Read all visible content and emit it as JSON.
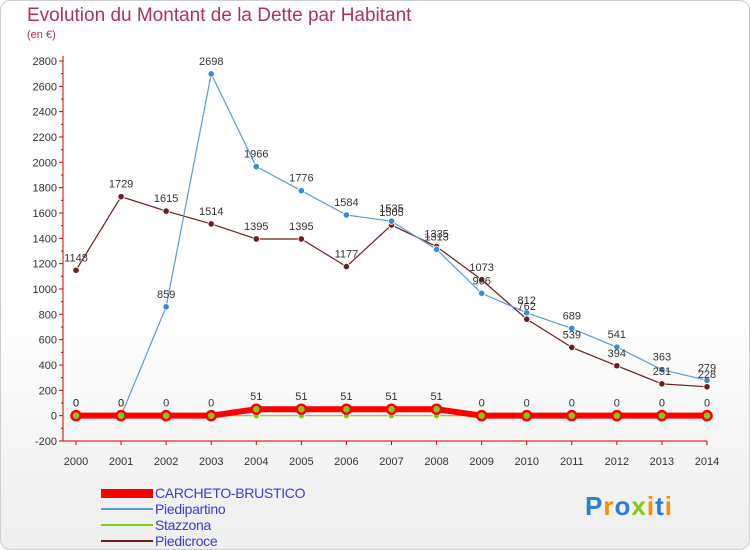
{
  "chart_data": {
    "type": "line",
    "title": "Evolution du Montant de la Dette par Habitant",
    "subtitle": "(en €)",
    "categories": [
      "2000",
      "2001",
      "2002",
      "2003",
      "2004",
      "2005",
      "2006",
      "2007",
      "2008",
      "2009",
      "2010",
      "2011",
      "2012",
      "2013",
      "2014"
    ],
    "ylim": [
      -200,
      2800
    ],
    "yticks": [
      -200,
      0,
      200,
      400,
      600,
      800,
      1000,
      1200,
      1400,
      1600,
      1800,
      2000,
      2200,
      2400,
      2600,
      2800
    ],
    "grid": false,
    "legend_position": "bottom-left",
    "series": [
      {
        "name": "CARCHETO-BRUSTICO",
        "color": "#ff0000",
        "values": [
          0,
          0,
          0,
          0,
          51,
          51,
          51,
          51,
          51,
          0,
          0,
          0,
          0,
          0,
          0
        ]
      },
      {
        "name": "Piedipartino",
        "color": "#5b9bd5",
        "values": [
          0,
          0,
          859,
          2698,
          1966,
          1776,
          1584,
          1535,
          1313,
          966,
          812,
          689,
          541,
          363,
          279
        ]
      },
      {
        "name": "Stazzona",
        "color": "#7ccc1a",
        "values": [
          0,
          0,
          0,
          0,
          0,
          0,
          0,
          0,
          0,
          0,
          0,
          0,
          0,
          0,
          0
        ]
      },
      {
        "name": "Piedicroce",
        "color": "#6b1f1f",
        "values": [
          1148,
          1729,
          1615,
          1514,
          1395,
          1395,
          1177,
          1505,
          1335,
          1073,
          762,
          539,
          394,
          251,
          228
        ]
      }
    ]
  },
  "brand": {
    "letters": [
      "P",
      "r",
      "o",
      "x",
      "i",
      "t",
      "i"
    ],
    "colors": [
      "#2e7bd6",
      "#ff8c00",
      "#2e7bd6",
      "#7ccc1a",
      "#ff8c00",
      "#2e7bd6",
      "#ff8c00"
    ]
  }
}
